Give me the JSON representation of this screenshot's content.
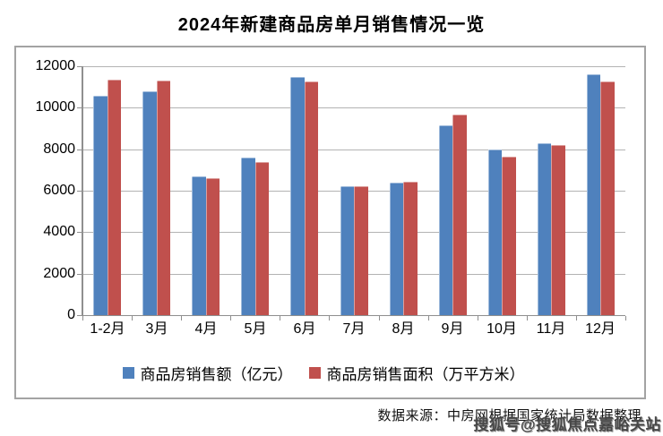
{
  "title": "2024年新建商品房单月销售情况一览",
  "chart_data": {
    "type": "bar",
    "title": "2024年新建商品房单月销售情况一览",
    "categories": [
      "1-2月",
      "3月",
      "4月",
      "5月",
      "6月",
      "7月",
      "8月",
      "9月",
      "10月",
      "11月",
      "12月"
    ],
    "series": [
      {
        "name": "商品房销售额（亿元）",
        "color": "#4F81BD",
        "values": [
          10566,
          10789,
          6712,
          7598,
          11468,
          6197,
          6393,
          9157,
          7975,
          8270,
          11625
        ]
      },
      {
        "name": "商品房销售面积（万平方米）",
        "color": "#C0504D",
        "values": [
          11369,
          11299,
          6584,
          7390,
          11274,
          6233,
          6453,
          9682,
          7646,
          8188,
          11267
        ]
      }
    ],
    "xlabel": "",
    "ylabel": "",
    "ylim": [
      0,
      12000
    ],
    "yticks": [
      0,
      2000,
      4000,
      6000,
      8000,
      10000,
      12000
    ],
    "grid": true,
    "legend_position": "bottom"
  },
  "footer": {
    "source_text": "数据来源：中房网根据国家统计局数据整理"
  },
  "watermark": {
    "text": "搜狐号@搜狐焦点嘉峪关站"
  },
  "colors": {
    "series_blue": "#4F81BD",
    "series_red": "#C0504D",
    "grid": "#b3b3b3",
    "axis": "#8f8f8f",
    "frame_border": "#a3a3a3",
    "watermark": "#474747",
    "text": "#000000"
  }
}
